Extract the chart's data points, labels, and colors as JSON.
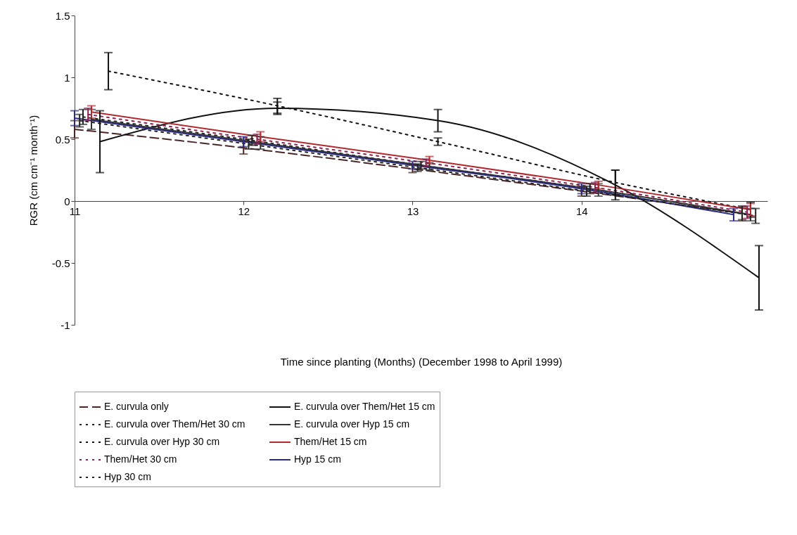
{
  "chart_data": {
    "type": "line",
    "xlabel": "Time since planting (Months) (December 1998 to April 1999)",
    "ylabel": "RGR (cm cm⁻¹ month⁻¹)",
    "xlim": [
      11,
      15.1
    ],
    "xticks": [
      11,
      12,
      13,
      14
    ],
    "ylim": [
      -1,
      1.5
    ],
    "yticks": [
      -1,
      -0.5,
      0,
      0.5,
      1,
      1.5
    ],
    "grid": false,
    "legend": "bottom",
    "marker": "none",
    "series": [
      {
        "name": "E. curvula only",
        "color": "#4a2626",
        "line_style": "dashed",
        "x": [
          11.0,
          12.0,
          13.0,
          14.0,
          14.95
        ],
        "values": [
          0.58,
          0.43,
          0.26,
          0.08,
          -0.1
        ],
        "errors": [
          0.07,
          0.05,
          0.03,
          0.04,
          0.05
        ]
      },
      {
        "name": "E. curvula over Them/Het 15 cm",
        "color": "#111111",
        "line_style": "solid",
        "x": [
          11.15,
          12.2,
          13.15,
          14.2,
          15.05
        ],
        "values": [
          0.48,
          0.75,
          0.65,
          0.13,
          -0.62
        ],
        "errors": [
          0.25,
          0.05,
          0.09,
          0.12,
          0.26
        ]
      },
      {
        "name": "E. curvula over Them/Het 30 cm",
        "color": "#222222",
        "line_style": "dotted",
        "x": [
          11.05,
          12.05,
          13.05,
          14.05,
          14.95
        ],
        "values": [
          0.68,
          0.49,
          0.29,
          0.1,
          -0.1
        ],
        "errors": [
          0.06,
          0.04,
          0.03,
          0.04,
          0.06
        ]
      },
      {
        "name": "E. curvula over Hyp 15 cm",
        "color": "#333333",
        "line_style": "solid",
        "x": [
          11.1,
          12.1,
          13.1,
          14.1,
          15.0
        ],
        "values": [
          0.66,
          0.47,
          0.28,
          0.09,
          -0.11
        ],
        "errors": [
          0.08,
          0.05,
          0.03,
          0.05,
          0.05
        ]
      },
      {
        "name": "E. curvula over Hyp 30 cm",
        "color": "#111111",
        "line_style": "dotted",
        "x": [
          11.2,
          12.2,
          13.15,
          14.2,
          15.0
        ],
        "values": [
          1.05,
          0.77,
          0.48,
          0.15,
          -0.07
        ],
        "errors": [
          0.15,
          0.06,
          0.03,
          0.1,
          0.06
        ]
      },
      {
        "name": "Them/Het 15 cm",
        "color": "#b22a30",
        "line_style": "solid",
        "x": [
          11.1,
          12.1,
          13.1,
          14.1,
          15.0
        ],
        "values": [
          0.72,
          0.52,
          0.33,
          0.13,
          -0.07
        ],
        "errors": [
          0.05,
          0.04,
          0.03,
          0.03,
          0.05
        ]
      },
      {
        "name": "Them/Het 30 cm",
        "color": "#8b2050",
        "line_style": "dotted",
        "x": [
          11.08,
          12.08,
          13.08,
          14.08,
          14.98
        ],
        "values": [
          0.7,
          0.5,
          0.31,
          0.11,
          -0.09
        ],
        "errors": [
          0.05,
          0.04,
          0.03,
          0.04,
          0.05
        ]
      },
      {
        "name": "Hyp 15 cm",
        "color": "#2a2a80",
        "line_style": "solid",
        "x": [
          11.0,
          12.0,
          13.0,
          14.0,
          14.9
        ],
        "values": [
          0.67,
          0.48,
          0.29,
          0.1,
          -0.11
        ],
        "errors": [
          0.06,
          0.04,
          0.03,
          0.04,
          0.05
        ]
      },
      {
        "name": "Hyp 30 cm",
        "color": "#222222",
        "line_style": "dotted",
        "x": [
          11.03,
          12.03,
          13.03,
          14.03,
          15.03
        ],
        "values": [
          0.65,
          0.46,
          0.27,
          0.08,
          -0.12
        ],
        "errors": [
          0.05,
          0.04,
          0.03,
          0.04,
          0.06
        ]
      }
    ]
  }
}
